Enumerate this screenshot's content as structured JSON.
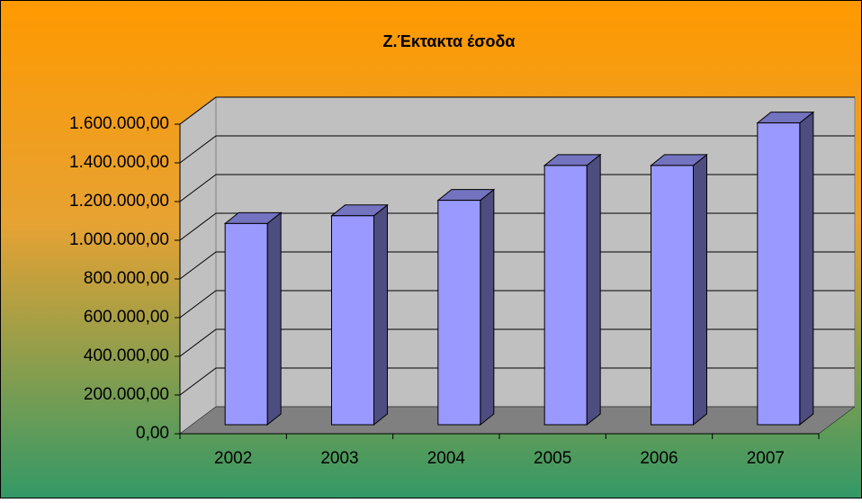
{
  "chart_data": {
    "type": "bar3d",
    "title": "Ζ.Έκτακτα έσοδα",
    "categories": [
      "2002",
      "2003",
      "2004",
      "2005",
      "2006",
      "2007"
    ],
    "values": [
      1040000,
      1080000,
      1160000,
      1340000,
      1340000,
      1560000
    ],
    "color": "#9999ff",
    "ylim": [
      0,
      1600000
    ],
    "yticks": [
      {
        "value": 0,
        "label": "0,00"
      },
      {
        "value": 200000,
        "label": "200.000,00"
      },
      {
        "value": 400000,
        "label": "400.000,00"
      },
      {
        "value": 600000,
        "label": "600.000,00"
      },
      {
        "value": 800000,
        "label": "800.000,00"
      },
      {
        "value": 1000000,
        "label": "1.000.000,00"
      },
      {
        "value": 1200000,
        "label": "1.200.000,00"
      },
      {
        "value": 1400000,
        "label": "1.400.000,00"
      },
      {
        "value": 1600000,
        "label": "1.600.000,00"
      }
    ],
    "grid": true
  }
}
